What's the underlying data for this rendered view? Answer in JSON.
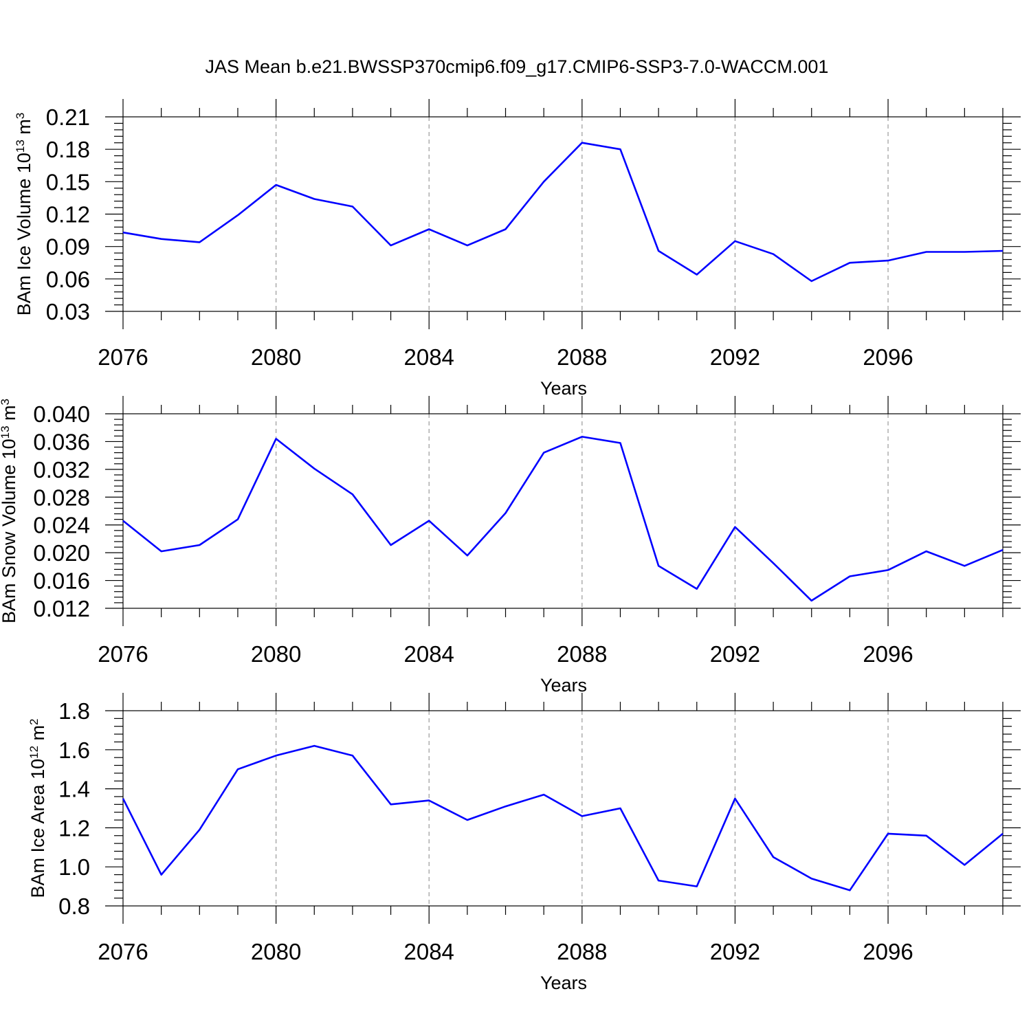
{
  "figure_title": "JAS Mean b.e21.BWSSP370cmip6.f09_g17.CMIP6-SSP3-7.0-WACCM.001",
  "chart_data": [
    {
      "type": "line",
      "xlabel": "Years",
      "ylabel": {
        "main": "BAm Ice Volume 10",
        "exp": "13",
        "unit": " m",
        "unit_exp": "3"
      },
      "xlim": [
        2076,
        2099
      ],
      "ylim": [
        0.03,
        0.21
      ],
      "xticks": [
        2076,
        2080,
        2084,
        2088,
        2092,
        2096
      ],
      "xtick_labels": [
        "2076",
        "2080",
        "2084",
        "2088",
        "2092",
        "2096"
      ],
      "yticks": [
        0.03,
        0.06,
        0.09,
        0.12,
        0.15,
        0.18,
        0.21
      ],
      "ytick_labels": [
        "0.03",
        "0.06",
        "0.09",
        "0.12",
        "0.15",
        "0.18",
        "0.21"
      ],
      "grid": "vertical dashed at major x ticks",
      "color": "#0000ff",
      "x": [
        2076,
        2077,
        2078,
        2079,
        2080,
        2081,
        2082,
        2083,
        2084,
        2085,
        2086,
        2087,
        2088,
        2089,
        2090,
        2091,
        2092,
        2093,
        2094,
        2095,
        2096,
        2097,
        2098,
        2099
      ],
      "values": [
        0.103,
        0.097,
        0.094,
        0.119,
        0.147,
        0.134,
        0.127,
        0.091,
        0.106,
        0.091,
        0.106,
        0.15,
        0.186,
        0.18,
        0.086,
        0.064,
        0.095,
        0.083,
        0.058,
        0.075,
        0.077,
        0.085,
        0.085,
        0.086
      ]
    },
    {
      "type": "line",
      "xlabel": "Years",
      "ylabel": {
        "main": "BAm Snow Volume 10",
        "exp": "13",
        "unit": " m",
        "unit_exp": "3"
      },
      "xlim": [
        2076,
        2099
      ],
      "ylim": [
        0.012,
        0.04
      ],
      "xticks": [
        2076,
        2080,
        2084,
        2088,
        2092,
        2096
      ],
      "xtick_labels": [
        "2076",
        "2080",
        "2084",
        "2088",
        "2092",
        "2096"
      ],
      "yticks": [
        0.012,
        0.016,
        0.02,
        0.024,
        0.028,
        0.032,
        0.036,
        0.04
      ],
      "ytick_labels": [
        "0.012",
        "0.016",
        "0.020",
        "0.024",
        "0.028",
        "0.032",
        "0.036",
        "0.040"
      ],
      "grid": "vertical dashed at major x ticks",
      "color": "#0000ff",
      "x": [
        2076,
        2077,
        2078,
        2079,
        2080,
        2081,
        2082,
        2083,
        2084,
        2085,
        2086,
        2087,
        2088,
        2089,
        2090,
        2091,
        2092,
        2093,
        2094,
        2095,
        2096,
        2097,
        2098,
        2099
      ],
      "values": [
        0.0246,
        0.0202,
        0.0211,
        0.0248,
        0.0364,
        0.0321,
        0.0284,
        0.0211,
        0.0246,
        0.0196,
        0.0257,
        0.0344,
        0.0367,
        0.0358,
        0.0181,
        0.0148,
        0.0237,
        0.0185,
        0.0131,
        0.0166,
        0.0175,
        0.0202,
        0.0181,
        0.0204
      ]
    },
    {
      "type": "line",
      "xlabel": "Years",
      "ylabel": {
        "main": "BAm Ice Area 10",
        "exp": "12",
        "unit": " m",
        "unit_exp": "2"
      },
      "xlim": [
        2076,
        2099
      ],
      "ylim": [
        0.8,
        1.8
      ],
      "xticks": [
        2076,
        2080,
        2084,
        2088,
        2092,
        2096
      ],
      "xtick_labels": [
        "2076",
        "2080",
        "2084",
        "2088",
        "2092",
        "2096"
      ],
      "yticks": [
        0.8,
        1.0,
        1.2,
        1.4,
        1.6,
        1.8
      ],
      "ytick_labels": [
        "0.8",
        "1.0",
        "1.2",
        "1.4",
        "1.6",
        "1.8"
      ],
      "grid": "vertical dashed at major x ticks",
      "color": "#0000ff",
      "x": [
        2076,
        2077,
        2078,
        2079,
        2080,
        2081,
        2082,
        2083,
        2084,
        2085,
        2086,
        2087,
        2088,
        2089,
        2090,
        2091,
        2092,
        2093,
        2094,
        2095,
        2096,
        2097,
        2098,
        2099
      ],
      "values": [
        1.35,
        0.96,
        1.19,
        1.5,
        1.57,
        1.62,
        1.57,
        1.32,
        1.34,
        1.24,
        1.31,
        1.37,
        1.26,
        1.3,
        0.93,
        0.9,
        1.35,
        1.05,
        0.94,
        0.88,
        1.17,
        1.16,
        1.01,
        1.17
      ]
    }
  ]
}
